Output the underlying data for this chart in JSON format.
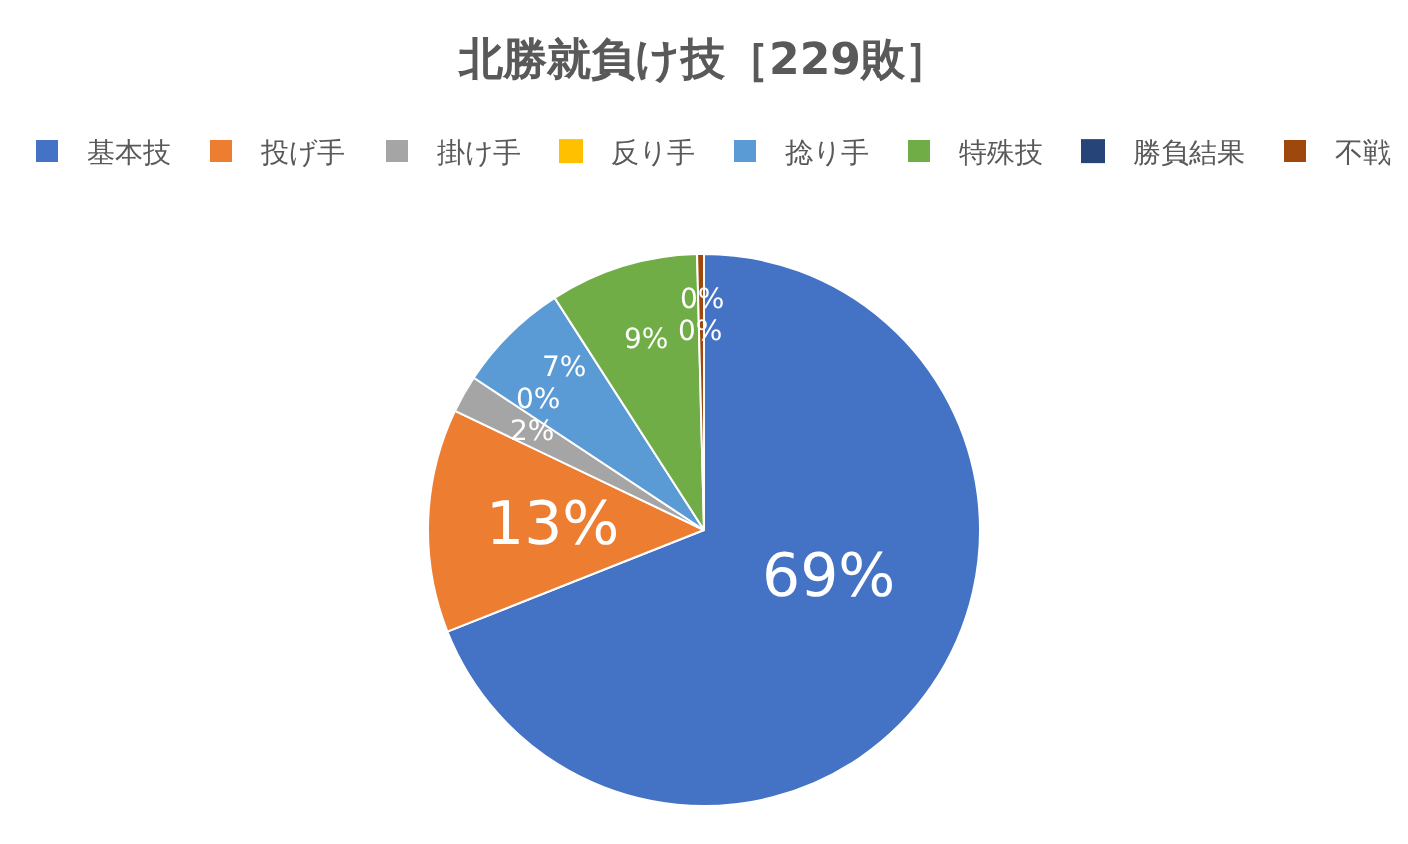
{
  "chart_data": {
    "type": "pie",
    "title": "北勝就負け技［229敗］",
    "categories": [
      "基本技",
      "投げ手",
      "掛け手",
      "反り手",
      "捻り手",
      "特殊技",
      "勝負結果",
      "不戦"
    ],
    "values": [
      69.0,
      13.1,
      2.2,
      0,
      6.6,
      8.7,
      0,
      0.4
    ],
    "value_labels": [
      "69%",
      "13%",
      "2%",
      "0%",
      "7%",
      "9%",
      "0%",
      "0%"
    ],
    "colors": [
      "#4472c4",
      "#ed7d31",
      "#a5a5a5",
      "#ffc000",
      "#5b9bd5",
      "#70ad47",
      "#264478",
      "#9e480e"
    ],
    "legend": "top"
  }
}
